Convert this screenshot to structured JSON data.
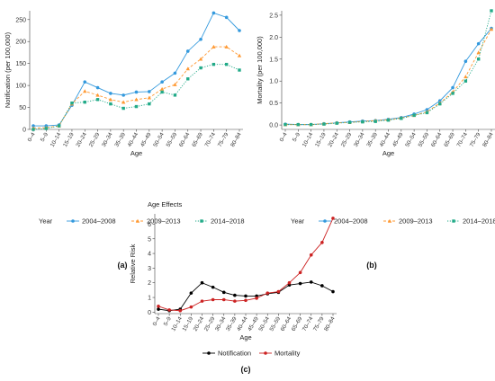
{
  "chart_data": [
    {
      "type": "line",
      "panel_label": "(a)",
      "xlabel": "Age",
      "ylabel": "Notification (per 100,000)",
      "ylim": [
        0,
        270
      ],
      "yticks": [
        0,
        50,
        100,
        150,
        200,
        250
      ],
      "grid": false,
      "legend_title": "Year",
      "legend_position": "bottom",
      "categories": [
        "0–4",
        "5–9",
        "10–14",
        "15–19",
        "20–24",
        "25–29",
        "30–34",
        "35–39",
        "40–44",
        "45–49",
        "50–54",
        "55–59",
        "60–64",
        "65–69",
        "70–74",
        "75–79",
        "80–84"
      ],
      "series": [
        {
          "name": "2004–2008",
          "color": "#3399dd",
          "dash": "solid",
          "values": [
            8,
            8,
            10,
            55,
            108,
            95,
            82,
            78,
            85,
            86,
            108,
            128,
            178,
            205,
            265,
            255,
            225
          ]
        },
        {
          "name": "2009–2013",
          "color": "#ff9933",
          "dash": "dashed",
          "values": [
            3,
            4,
            8,
            58,
            87,
            78,
            68,
            62,
            68,
            72,
            92,
            102,
            138,
            160,
            188,
            188,
            168
          ]
        },
        {
          "name": "2014–2018",
          "color": "#22aa88",
          "dash": "dotted",
          "values": [
            0,
            2,
            8,
            60,
            62,
            68,
            58,
            48,
            52,
            58,
            85,
            78,
            115,
            140,
            148,
            148,
            135
          ]
        }
      ]
    },
    {
      "type": "line",
      "panel_label": "(b)",
      "xlabel": "Age",
      "ylabel": "Mortality (per 100,000)",
      "ylim": [
        -0.1,
        2.6
      ],
      "yticks": [
        0.0,
        0.5,
        1.0,
        1.5,
        2.0,
        2.5
      ],
      "grid": false,
      "legend_title": "Year",
      "legend_position": "bottom",
      "categories": [
        "0–4",
        "5–9",
        "10–14",
        "15–19",
        "20–24",
        "25–29",
        "30–34",
        "35–39",
        "40–44",
        "45–49",
        "50–54",
        "55–59",
        "60–64",
        "65–69",
        "70–74",
        "75–79",
        "80–84"
      ],
      "series": [
        {
          "name": "2004–2008",
          "color": "#3399dd",
          "dash": "solid",
          "values": [
            0.02,
            0.01,
            0.01,
            0.03,
            0.05,
            0.07,
            0.09,
            0.1,
            0.13,
            0.17,
            0.25,
            0.35,
            0.55,
            0.85,
            1.45,
            1.85,
            2.2
          ]
        },
        {
          "name": "2009–2013",
          "color": "#ff9933",
          "dash": "dashed",
          "values": [
            0.01,
            0.01,
            0.01,
            0.03,
            0.05,
            0.06,
            0.08,
            0.1,
            0.12,
            0.16,
            0.22,
            0.3,
            0.5,
            0.75,
            1.1,
            1.65,
            2.18
          ]
        },
        {
          "name": "2014–2018",
          "color": "#22aa88",
          "dash": "dotted",
          "values": [
            0.01,
            0.01,
            0.01,
            0.02,
            0.04,
            0.06,
            0.07,
            0.08,
            0.11,
            0.15,
            0.22,
            0.28,
            0.48,
            0.72,
            1.0,
            1.5,
            2.6
          ]
        }
      ]
    },
    {
      "type": "line",
      "panel_label": "(c)",
      "title": "Age Effects",
      "xlabel": "Age",
      "ylabel": "Relative Risk",
      "ylim": [
        -0.1,
        6.7
      ],
      "yticks": [
        0,
        1,
        2,
        3,
        4,
        5,
        6
      ],
      "grid": false,
      "legend_position": "bottom",
      "categories": [
        "0–4",
        "5–9",
        "10–14",
        "15–19",
        "20–24",
        "25–29",
        "30–34",
        "35–39",
        "40–44",
        "45–49",
        "50–54",
        "55–59",
        "60–64",
        "65–69",
        "70–74",
        "75–79",
        "80–84"
      ],
      "series": [
        {
          "name": "Notification",
          "color": "#000000",
          "dash": "solid",
          "values": [
            0.2,
            0.1,
            0.2,
            1.3,
            2.0,
            1.7,
            1.35,
            1.15,
            1.1,
            1.1,
            1.25,
            1.35,
            1.85,
            1.95,
            2.05,
            1.8,
            1.4
          ]
        },
        {
          "name": "Mortality",
          "color": "#cc2222",
          "dash": "solid",
          "values": [
            0.4,
            0.15,
            0.1,
            0.35,
            0.75,
            0.85,
            0.85,
            0.75,
            0.8,
            0.95,
            1.3,
            1.4,
            2.0,
            2.7,
            3.9,
            4.75,
            6.4
          ]
        }
      ]
    }
  ]
}
